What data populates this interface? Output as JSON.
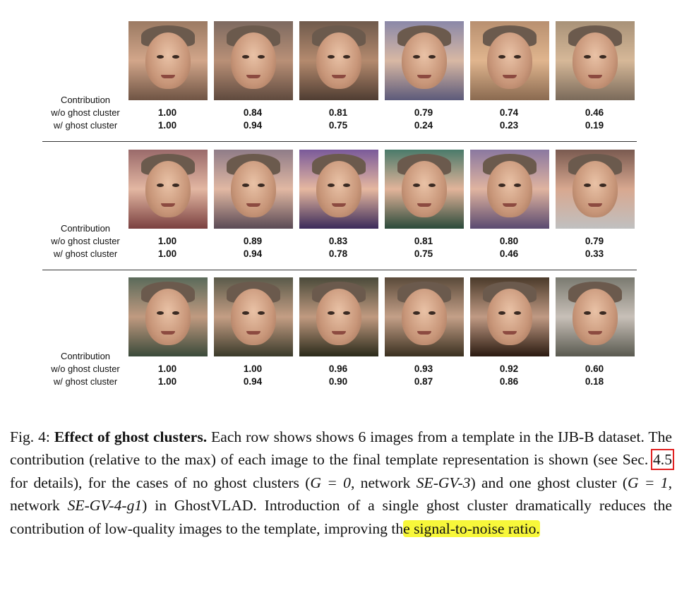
{
  "rows": [
    {
      "labels": [
        "Contribution",
        "w/o ghost cluster",
        "w/ ghost cluster"
      ],
      "wo": [
        "1.00",
        "0.84",
        "0.81",
        "0.79",
        "0.74",
        "0.46"
      ],
      "w": [
        "1.00",
        "0.94",
        "0.75",
        "0.24",
        "0.23",
        "0.19"
      ]
    },
    {
      "labels": [
        "Contribution",
        "w/o ghost cluster",
        "w/ ghost cluster"
      ],
      "wo": [
        "1.00",
        "0.89",
        "0.83",
        "0.81",
        "0.80",
        "0.79"
      ],
      "w": [
        "1.00",
        "0.94",
        "0.78",
        "0.75",
        "0.46",
        "0.33"
      ]
    },
    {
      "labels": [
        "Contribution",
        "w/o ghost cluster",
        "w/ ghost cluster"
      ],
      "wo": [
        "1.00",
        "1.00",
        "0.96",
        "0.93",
        "0.92",
        "0.60"
      ],
      "w": [
        "1.00",
        "0.94",
        "0.90",
        "0.87",
        "0.86",
        "0.18"
      ]
    }
  ],
  "caption": {
    "prefix": "Fig. 4: ",
    "title": "Effect of ghost clusters.",
    "part1": " Each row shows shows 6 images from a template in the IJB-B dataset. The contribution (relative to the max) of each image to the final template representation is shown (see Sec. ",
    "ref": "4.5",
    "part2": " for details), for the cases of no ghost clusters (",
    "g0": "G = 0",
    "part3": ", network ",
    "net1": "SE-GV-3",
    "part4": ") and one ghost cluster (",
    "g1": "G = 1",
    "part5": ", network ",
    "net2": "SE-GV-4-g1",
    "part6": ") in GhostVLAD. Introduction of a single ghost cluster dramatically reduces the contribution of low-quality images to the template, improving th",
    "highlight": "e signal-to-noise ratio."
  }
}
